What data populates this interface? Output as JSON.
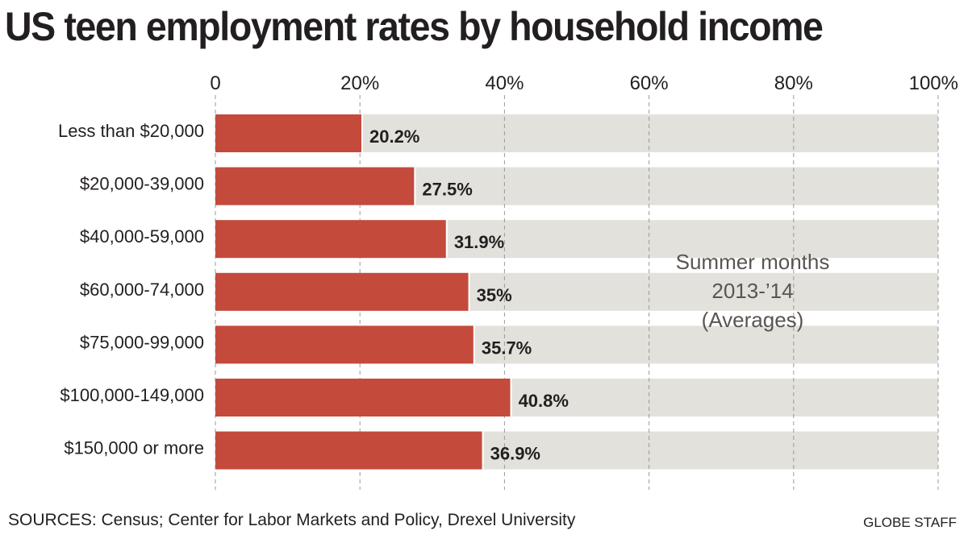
{
  "chart_data": {
    "type": "bar",
    "orientation": "horizontal",
    "title": "US teen employment rates by household income",
    "categories": [
      "Less than $20,000",
      "$20,000-39,000",
      "$40,000-59,000",
      "$60,000-74,000",
      "$75,000-99,000",
      "$100,000-149,000",
      "$150,000 or more"
    ],
    "values": [
      20.2,
      27.5,
      31.9,
      35,
      35.7,
      40.8,
      36.9
    ],
    "value_labels": [
      "20.2%",
      "27.5%",
      "31.9%",
      "35%",
      "35.7%",
      "40.8%",
      "36.9%"
    ],
    "xlim": [
      0,
      100
    ],
    "x_ticks": [
      0,
      20,
      40,
      60,
      80,
      100
    ],
    "x_tick_labels": [
      "0",
      "20%",
      "40%",
      "60%",
      "80%",
      "100%"
    ],
    "grid": true,
    "annotation": [
      "Summer months",
      "2013-’14",
      "(Averages)"
    ],
    "colors": {
      "bar": "#c44a3c",
      "track": "#e2e1db",
      "grid": "#9a9a9a",
      "text": "#231f20",
      "annotation": "#5a5550"
    }
  },
  "footer": {
    "sources": "SOURCES: Census; Center for Labor Markets and Policy, Drexel University",
    "credit": "GLOBE STAFF"
  }
}
